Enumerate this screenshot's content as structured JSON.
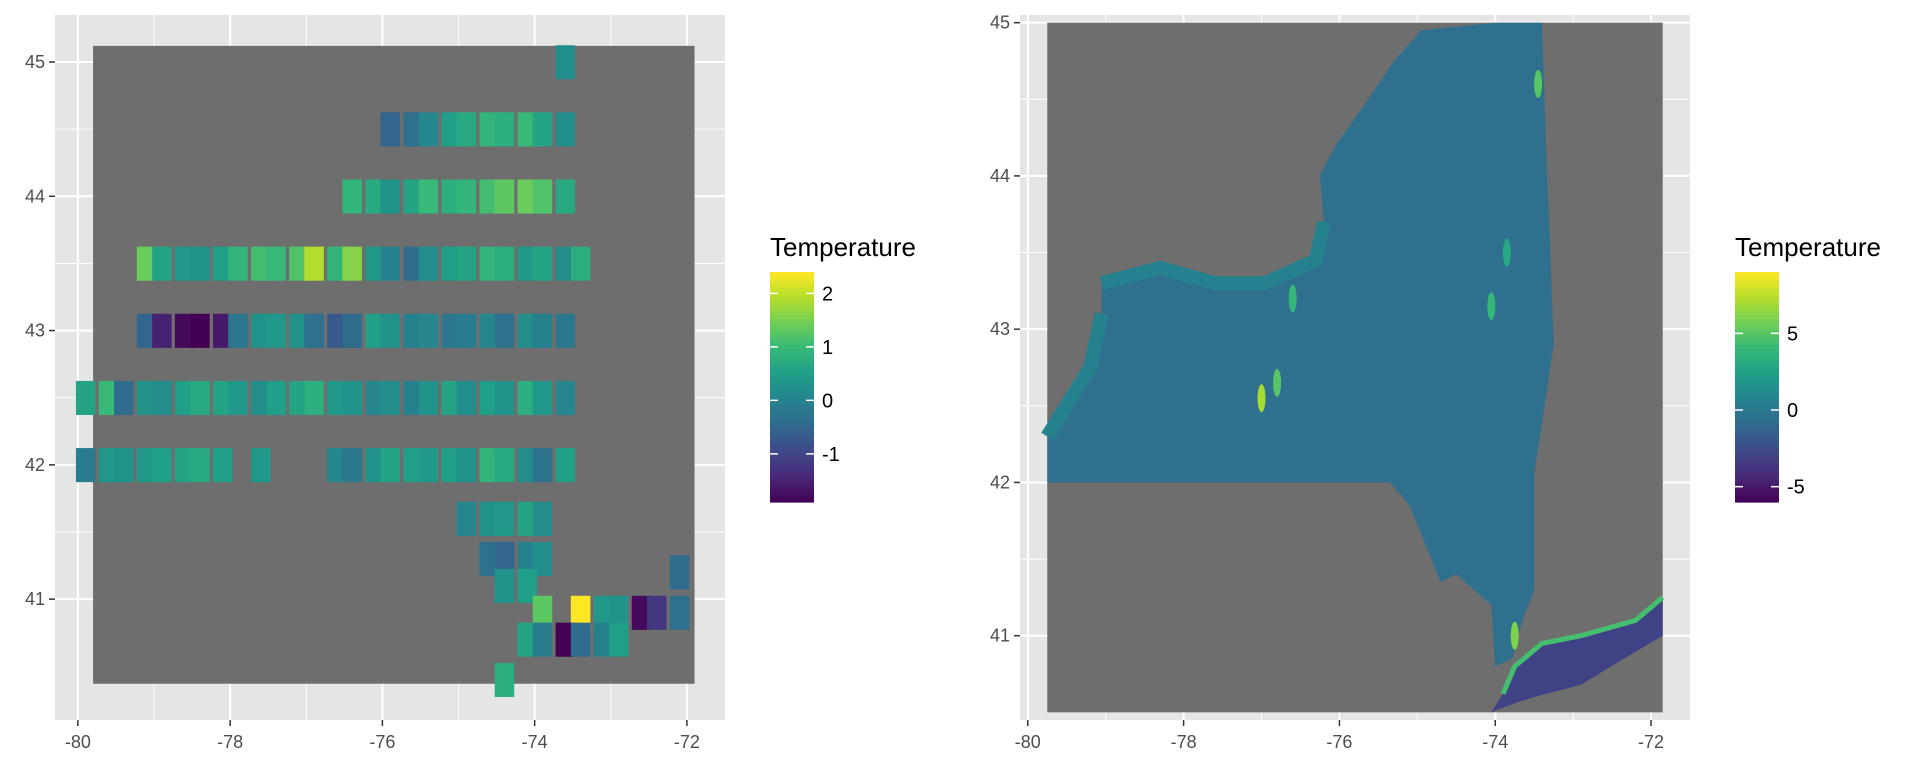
{
  "colors": {
    "panel_bg": "#e5e5e5",
    "grid_major": "#ffffff",
    "na_fill": "#6e6e6e",
    "axis_text": "#4d4d4d",
    "viridis": [
      "#440154",
      "#482878",
      "#3e4989",
      "#31688e",
      "#26828e",
      "#1f9e89",
      "#35b779",
      "#6ece58",
      "#b5de2b",
      "#fde725"
    ]
  },
  "chart_data": [
    {
      "type": "heatmap",
      "name": "coarse",
      "xlim": [
        -80.3,
        -71.5
      ],
      "ylim": [
        40.1,
        45.35
      ],
      "extent": {
        "x": [
          -79.8,
          -71.9
        ],
        "y": [
          40.37,
          45.12
        ]
      },
      "x_ticks": [
        -80,
        -78,
        -76,
        -74,
        -72
      ],
      "x_tick_labels": [
        "-80",
        "-78",
        "-76",
        "-74",
        "-72"
      ],
      "y_ticks": [
        41,
        42,
        43,
        44,
        45
      ],
      "y_tick_labels": [
        "41",
        "42",
        "43",
        "44",
        "45"
      ],
      "legend": {
        "title": "Temperature",
        "range": [
          -1.9,
          2.4
        ],
        "breaks": [
          2,
          1,
          0,
          -1
        ],
        "break_labels": [
          "2",
          "1",
          "0",
          "-1"
        ]
      },
      "cells": [
        {
          "x": -73.6,
          "y": 45.0,
          "v": 0.2
        },
        {
          "x": -75.9,
          "y": 44.5,
          "v": -0.5
        },
        {
          "x": -75.6,
          "y": 44.5,
          "v": -0.3
        },
        {
          "x": -75.4,
          "y": 44.5,
          "v": 0.1
        },
        {
          "x": -75.1,
          "y": 44.5,
          "v": 0.5
        },
        {
          "x": -74.9,
          "y": 44.5,
          "v": 0.7
        },
        {
          "x": -74.6,
          "y": 44.5,
          "v": 0.9
        },
        {
          "x": -74.4,
          "y": 44.5,
          "v": 0.8
        },
        {
          "x": -74.1,
          "y": 44.5,
          "v": 1.0
        },
        {
          "x": -73.9,
          "y": 44.5,
          "v": 0.6
        },
        {
          "x": -73.6,
          "y": 44.5,
          "v": 0.2
        },
        {
          "x": -76.4,
          "y": 44.0,
          "v": 0.9
        },
        {
          "x": -76.1,
          "y": 44.0,
          "v": 0.7
        },
        {
          "x": -75.9,
          "y": 44.0,
          "v": 0.3
        },
        {
          "x": -75.6,
          "y": 44.0,
          "v": 0.6
        },
        {
          "x": -75.4,
          "y": 44.0,
          "v": 1.0
        },
        {
          "x": -75.1,
          "y": 44.0,
          "v": 0.8
        },
        {
          "x": -74.9,
          "y": 44.0,
          "v": 0.9
        },
        {
          "x": -74.6,
          "y": 44.0,
          "v": 1.1
        },
        {
          "x": -74.4,
          "y": 44.0,
          "v": 1.3
        },
        {
          "x": -74.1,
          "y": 44.0,
          "v": 1.4
        },
        {
          "x": -73.9,
          "y": 44.0,
          "v": 1.2
        },
        {
          "x": -73.6,
          "y": 44.0,
          "v": 0.7
        },
        {
          "x": -79.1,
          "y": 43.5,
          "v": 1.4
        },
        {
          "x": -78.9,
          "y": 43.5,
          "v": 0.6
        },
        {
          "x": -78.6,
          "y": 43.5,
          "v": 0.4
        },
        {
          "x": -78.4,
          "y": 43.5,
          "v": 0.3
        },
        {
          "x": -78.1,
          "y": 43.5,
          "v": 0.5
        },
        {
          "x": -77.9,
          "y": 43.5,
          "v": 0.9
        },
        {
          "x": -77.6,
          "y": 43.5,
          "v": 1.1
        },
        {
          "x": -77.4,
          "y": 43.5,
          "v": 1.0
        },
        {
          "x": -77.1,
          "y": 43.5,
          "v": 1.2
        },
        {
          "x": -76.9,
          "y": 43.5,
          "v": 1.9
        },
        {
          "x": -76.6,
          "y": 43.5,
          "v": 0.9
        },
        {
          "x": -76.4,
          "y": 43.5,
          "v": 1.6
        },
        {
          "x": -76.1,
          "y": 43.5,
          "v": 0.4
        },
        {
          "x": -75.9,
          "y": 43.5,
          "v": 0.0
        },
        {
          "x": -75.6,
          "y": 43.5,
          "v": -0.4
        },
        {
          "x": -75.4,
          "y": 43.5,
          "v": 0.2
        },
        {
          "x": -75.1,
          "y": 43.5,
          "v": 0.5
        },
        {
          "x": -74.9,
          "y": 43.5,
          "v": 0.6
        },
        {
          "x": -74.6,
          "y": 43.5,
          "v": 0.9
        },
        {
          "x": -74.4,
          "y": 43.5,
          "v": 0.8
        },
        {
          "x": -74.1,
          "y": 43.5,
          "v": 0.4
        },
        {
          "x": -73.9,
          "y": 43.5,
          "v": 0.6
        },
        {
          "x": -73.6,
          "y": 43.5,
          "v": 0.2
        },
        {
          "x": -73.4,
          "y": 43.5,
          "v": 0.8
        },
        {
          "x": -79.1,
          "y": 43.0,
          "v": -0.5
        },
        {
          "x": -78.9,
          "y": 43.0,
          "v": -1.5
        },
        {
          "x": -78.6,
          "y": 43.0,
          "v": -1.8
        },
        {
          "x": -78.4,
          "y": 43.0,
          "v": -1.9
        },
        {
          "x": -78.1,
          "y": 43.0,
          "v": -1.6
        },
        {
          "x": -77.9,
          "y": 43.0,
          "v": -0.2
        },
        {
          "x": -77.6,
          "y": 43.0,
          "v": 0.3
        },
        {
          "x": -77.4,
          "y": 43.0,
          "v": 0.4
        },
        {
          "x": -77.1,
          "y": 43.0,
          "v": 0.3
        },
        {
          "x": -76.9,
          "y": 43.0,
          "v": -0.3
        },
        {
          "x": -76.6,
          "y": 43.0,
          "v": -0.7
        },
        {
          "x": -76.4,
          "y": 43.0,
          "v": -0.4
        },
        {
          "x": -76.1,
          "y": 43.0,
          "v": 0.5
        },
        {
          "x": -75.9,
          "y": 43.0,
          "v": 0.3
        },
        {
          "x": -75.6,
          "y": 43.0,
          "v": 0.0
        },
        {
          "x": -75.4,
          "y": 43.0,
          "v": 0.1
        },
        {
          "x": -75.1,
          "y": 43.0,
          "v": -0.2
        },
        {
          "x": -74.9,
          "y": 43.0,
          "v": -0.1
        },
        {
          "x": -74.6,
          "y": 43.0,
          "v": 0.1
        },
        {
          "x": -74.4,
          "y": 43.0,
          "v": -0.3
        },
        {
          "x": -74.1,
          "y": 43.0,
          "v": 0.2
        },
        {
          "x": -73.9,
          "y": 43.0,
          "v": 0.0
        },
        {
          "x": -73.6,
          "y": 43.0,
          "v": -0.2
        },
        {
          "x": -79.9,
          "y": 42.5,
          "v": 0.6
        },
        {
          "x": -79.6,
          "y": 42.5,
          "v": 1.0
        },
        {
          "x": -79.4,
          "y": 42.5,
          "v": -0.4
        },
        {
          "x": -79.1,
          "y": 42.5,
          "v": 0.3
        },
        {
          "x": -78.9,
          "y": 42.5,
          "v": 0.2
        },
        {
          "x": -78.6,
          "y": 42.5,
          "v": 0.5
        },
        {
          "x": -78.4,
          "y": 42.5,
          "v": 0.7
        },
        {
          "x": -78.1,
          "y": 42.5,
          "v": 0.6
        },
        {
          "x": -77.9,
          "y": 42.5,
          "v": 0.4
        },
        {
          "x": -77.6,
          "y": 42.5,
          "v": 0.2
        },
        {
          "x": -77.4,
          "y": 42.5,
          "v": 0.5
        },
        {
          "x": -77.1,
          "y": 42.5,
          "v": 0.6
        },
        {
          "x": -76.9,
          "y": 42.5,
          "v": 0.8
        },
        {
          "x": -76.6,
          "y": 42.5,
          "v": 0.4
        },
        {
          "x": -76.4,
          "y": 42.5,
          "v": 0.3
        },
        {
          "x": -76.1,
          "y": 42.5,
          "v": 0.1
        },
        {
          "x": -75.9,
          "y": 42.5,
          "v": 0.2
        },
        {
          "x": -75.6,
          "y": 42.5,
          "v": 0.0
        },
        {
          "x": -75.4,
          "y": 42.5,
          "v": 0.3
        },
        {
          "x": -75.1,
          "y": 42.5,
          "v": 0.6
        },
        {
          "x": -74.9,
          "y": 42.5,
          "v": 0.2
        },
        {
          "x": -74.6,
          "y": 42.5,
          "v": 0.5
        },
        {
          "x": -74.4,
          "y": 42.5,
          "v": 0.3
        },
        {
          "x": -74.1,
          "y": 42.5,
          "v": 0.8
        },
        {
          "x": -73.9,
          "y": 42.5,
          "v": 0.4
        },
        {
          "x": -73.6,
          "y": 42.5,
          "v": 0.1
        },
        {
          "x": -79.9,
          "y": 42.0,
          "v": -0.1
        },
        {
          "x": -79.6,
          "y": 42.0,
          "v": 0.4
        },
        {
          "x": -79.4,
          "y": 42.0,
          "v": 0.3
        },
        {
          "x": -79.1,
          "y": 42.0,
          "v": 0.4
        },
        {
          "x": -78.9,
          "y": 42.0,
          "v": 0.5
        },
        {
          "x": -78.6,
          "y": 42.0,
          "v": 0.6
        },
        {
          "x": -78.4,
          "y": 42.0,
          "v": 0.7
        },
        {
          "x": -78.1,
          "y": 42.0,
          "v": 0.5
        },
        {
          "x": -77.6,
          "y": 42.0,
          "v": 0.4
        },
        {
          "x": -76.6,
          "y": 42.0,
          "v": 0.1
        },
        {
          "x": -76.4,
          "y": 42.0,
          "v": -0.2
        },
        {
          "x": -76.1,
          "y": 42.0,
          "v": 0.3
        },
        {
          "x": -75.9,
          "y": 42.0,
          "v": 0.6
        },
        {
          "x": -75.6,
          "y": 42.0,
          "v": 0.5
        },
        {
          "x": -75.4,
          "y": 42.0,
          "v": 0.4
        },
        {
          "x": -75.1,
          "y": 42.0,
          "v": 0.5
        },
        {
          "x": -74.9,
          "y": 42.0,
          "v": 0.3
        },
        {
          "x": -74.6,
          "y": 42.0,
          "v": 0.9
        },
        {
          "x": -74.4,
          "y": 42.0,
          "v": 0.7
        },
        {
          "x": -74.1,
          "y": 42.0,
          "v": 0.2
        },
        {
          "x": -73.9,
          "y": 42.0,
          "v": -0.3
        },
        {
          "x": -73.6,
          "y": 42.0,
          "v": 0.5
        },
        {
          "x": -74.9,
          "y": 41.6,
          "v": 0.1
        },
        {
          "x": -74.6,
          "y": 41.6,
          "v": 0.3
        },
        {
          "x": -74.4,
          "y": 41.6,
          "v": 0.4
        },
        {
          "x": -74.1,
          "y": 41.6,
          "v": 0.6
        },
        {
          "x": -73.9,
          "y": 41.6,
          "v": 0.2
        },
        {
          "x": -74.6,
          "y": 41.3,
          "v": -0.3
        },
        {
          "x": -74.4,
          "y": 41.3,
          "v": -0.5
        },
        {
          "x": -74.1,
          "y": 41.3,
          "v": 0.0
        },
        {
          "x": -73.9,
          "y": 41.3,
          "v": 0.2
        },
        {
          "x": -74.4,
          "y": 41.1,
          "v": 0.3
        },
        {
          "x": -74.1,
          "y": 41.1,
          "v": 0.5
        },
        {
          "x": -73.9,
          "y": 40.9,
          "v": 1.3
        },
        {
          "x": -73.4,
          "y": 40.9,
          "v": 2.4
        },
        {
          "x": -73.1,
          "y": 40.9,
          "v": 0.4
        },
        {
          "x": -72.9,
          "y": 40.9,
          "v": 0.3
        },
        {
          "x": -72.6,
          "y": 40.9,
          "v": -1.8
        },
        {
          "x": -72.4,
          "y": 40.9,
          "v": -1.2
        },
        {
          "x": -72.1,
          "y": 40.9,
          "v": -0.3
        },
        {
          "x": -72.1,
          "y": 41.2,
          "v": -0.4
        },
        {
          "x": -74.1,
          "y": 40.7,
          "v": 0.6
        },
        {
          "x": -73.9,
          "y": 40.7,
          "v": -0.1
        },
        {
          "x": -73.6,
          "y": 40.7,
          "v": -1.9
        },
        {
          "x": -73.4,
          "y": 40.7,
          "v": -0.4
        },
        {
          "x": -73.1,
          "y": 40.7,
          "v": 0.0
        },
        {
          "x": -72.9,
          "y": 40.7,
          "v": 0.5
        },
        {
          "x": -74.4,
          "y": 40.4,
          "v": 0.8
        }
      ]
    },
    {
      "type": "heatmap",
      "name": "fine",
      "xlim": [
        -80.1,
        -71.5
      ],
      "ylim": [
        40.45,
        45.05
      ],
      "extent": {
        "x": [
          -79.75,
          -71.85
        ],
        "y": [
          40.5,
          45.0
        ]
      },
      "x_ticks": [
        -80,
        -78,
        -76,
        -74,
        -72
      ],
      "x_tick_labels": [
        "-80",
        "-78",
        "-76",
        "-74",
        "-72"
      ],
      "y_ticks": [
        41,
        42,
        43,
        44,
        45
      ],
      "y_tick_labels": [
        "41",
        "42",
        "43",
        "44",
        "45"
      ],
      "legend": {
        "title": "Temperature",
        "range": [
          -6,
          9
        ],
        "breaks": [
          5,
          0,
          -5
        ],
        "break_labels": [
          "5",
          "0",
          "-5"
        ]
      },
      "land_value": -0.5,
      "land_outline": [
        [
          -79.75,
          42.0
        ],
        [
          -79.75,
          42.3
        ],
        [
          -79.2,
          42.75
        ],
        [
          -79.05,
          43.1
        ],
        [
          -79.05,
          43.3
        ],
        [
          -78.3,
          43.4
        ],
        [
          -77.6,
          43.3
        ],
        [
          -76.95,
          43.3
        ],
        [
          -76.3,
          43.45
        ],
        [
          -76.2,
          43.7
        ],
        [
          -76.25,
          44.0
        ],
        [
          -76.05,
          44.2
        ],
        [
          -75.7,
          44.45
        ],
        [
          -75.3,
          44.75
        ],
        [
          -74.95,
          44.95
        ],
        [
          -74.0,
          45.0
        ],
        [
          -73.4,
          45.0
        ],
        [
          -73.35,
          44.2
        ],
        [
          -73.3,
          43.6
        ],
        [
          -73.25,
          42.9
        ],
        [
          -73.5,
          42.05
        ],
        [
          -73.5,
          41.3
        ],
        [
          -73.65,
          41.1
        ],
        [
          -73.78,
          40.85
        ],
        [
          -74.0,
          40.8
        ],
        [
          -74.05,
          41.2
        ],
        [
          -74.5,
          41.4
        ],
        [
          -74.7,
          41.35
        ],
        [
          -75.1,
          41.85
        ],
        [
          -75.35,
          42.0
        ]
      ],
      "island_outline": [
        [
          -74.05,
          40.5
        ],
        [
          -73.9,
          40.62
        ],
        [
          -73.75,
          40.8
        ],
        [
          -73.4,
          40.95
        ],
        [
          -72.9,
          41.0
        ],
        [
          -72.2,
          41.1
        ],
        [
          -71.85,
          41.25
        ],
        [
          -71.85,
          41.0
        ],
        [
          -72.35,
          40.85
        ],
        [
          -72.9,
          40.68
        ],
        [
          -73.5,
          40.6
        ],
        [
          -73.8,
          40.55
        ]
      ],
      "island_value": -3,
      "island_north_shore_value": 4.5,
      "lake_shore_west": [
        [
          -79.75,
          42.3
        ],
        [
          -79.2,
          42.75
        ],
        [
          -79.05,
          43.1
        ]
      ],
      "lake_shore_north": [
        [
          -79.05,
          43.3
        ],
        [
          -78.3,
          43.4
        ],
        [
          -77.6,
          43.3
        ],
        [
          -76.95,
          43.3
        ],
        [
          -76.3,
          43.45
        ],
        [
          -76.2,
          43.7
        ]
      ],
      "shore_value": 0.6,
      "hotspots": [
        {
          "x": -77.0,
          "y": 42.55,
          "v": 7
        },
        {
          "x": -76.8,
          "y": 42.65,
          "v": 5
        },
        {
          "x": -76.6,
          "y": 43.2,
          "v": 4
        },
        {
          "x": -73.45,
          "y": 44.6,
          "v": 5
        },
        {
          "x": -73.85,
          "y": 43.5,
          "v": 3
        },
        {
          "x": -74.05,
          "y": 43.15,
          "v": 4
        },
        {
          "x": -73.75,
          "y": 41.0,
          "v": 6
        }
      ]
    }
  ]
}
